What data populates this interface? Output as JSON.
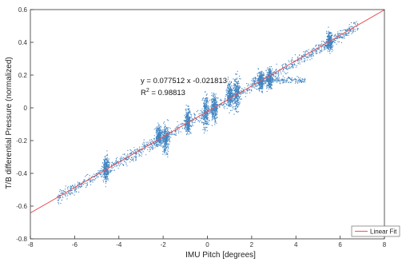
{
  "chart_data": {
    "type": "scatter",
    "title": "",
    "xlabel": "IMU Pitch [degrees]",
    "ylabel": "T/B differential Pressure (normalized)",
    "xlim": [
      -8,
      8
    ],
    "ylim": [
      -0.8,
      0.6
    ],
    "xticks": [
      -8,
      -6,
      -4,
      -2,
      0,
      2,
      4,
      6,
      8
    ],
    "yticks": [
      -0.8,
      -0.6,
      -0.4,
      -0.2,
      0,
      0.2,
      0.4,
      0.6
    ],
    "grid": false,
    "colors": {
      "points": "#1f6fb5",
      "fit": "#e8555a",
      "axis": "#333333"
    },
    "annotation": {
      "equation": "y = 0.077512 x  -0.021813",
      "r2_prefix": "R",
      "r2_sup": "2",
      "r2_value": " = 0.98813"
    },
    "legend": {
      "placement": "bottom-right",
      "entries": [
        "Linear Fit"
      ]
    },
    "fit": {
      "slope": 0.077512,
      "intercept": -0.021813
    },
    "clusters": [
      {
        "x": -4.6,
        "y": -0.37,
        "yspread": 0.04
      },
      {
        "x": -2.2,
        "y": -0.17,
        "yspread": 0.03
      },
      {
        "x": -1.9,
        "y": -0.19,
        "yspread": 0.04
      },
      {
        "x": -0.9,
        "y": -0.08,
        "yspread": 0.04
      },
      {
        "x": -0.1,
        "y": -0.02,
        "yspread": 0.05
      },
      {
        "x": 0.3,
        "y": 0.0,
        "yspread": 0.04
      },
      {
        "x": 1.0,
        "y": 0.08,
        "yspread": 0.04
      },
      {
        "x": 1.3,
        "y": 0.09,
        "yspread": 0.05
      },
      {
        "x": 2.4,
        "y": 0.17,
        "yspread": 0.03
      },
      {
        "x": 2.8,
        "y": 0.18,
        "yspread": 0.03
      },
      {
        "x": 5.5,
        "y": 0.41,
        "yspread": 0.03
      }
    ],
    "bands": [
      {
        "x0": -6.8,
        "x1": 6.8,
        "offset": 0.0,
        "spread": 0.018
      },
      {
        "x0": 2.0,
        "x1": 4.4,
        "y0": 0.17,
        "y1": 0.17,
        "spread": 0.01
      }
    ]
  }
}
